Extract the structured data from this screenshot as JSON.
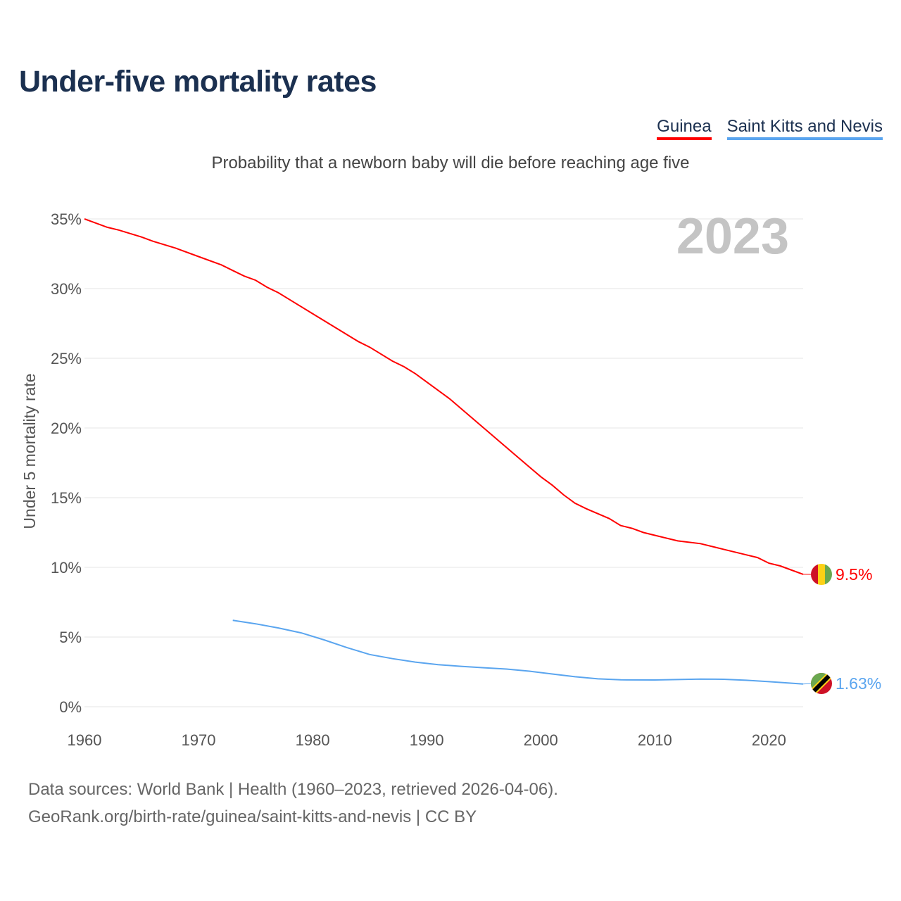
{
  "title": "Under-five mortality rates",
  "legend": [
    {
      "label": "Guinea",
      "color": "#ff0000"
    },
    {
      "label": "Saint Kitts and Nevis",
      "color": "#5aa5ef"
    }
  ],
  "subtitle": "Probability that a newborn baby will die before reaching age five",
  "year_watermark": "2023",
  "footer": {
    "line1": "Data sources: World Bank | Health (1960–2023, retrieved 2026-04-06).",
    "line2": "GeoRank.org/birth-rate/guinea/saint-kitts-and-nevis | CC BY"
  },
  "chart_data": {
    "type": "line",
    "title": "Under-five mortality rates",
    "ylabel": "Under 5 mortality rate",
    "xlabel": "",
    "xlim": [
      1960,
      2023
    ],
    "ylim": [
      0,
      35
    ],
    "xticks": [
      "1960",
      "1970",
      "1980",
      "1990",
      "2000",
      "2010",
      "2020"
    ],
    "yticks": [
      "0%",
      "5%",
      "10%",
      "15%",
      "20%",
      "25%",
      "30%",
      "35%"
    ],
    "grid": true,
    "legend_position": "top-right",
    "series": [
      {
        "name": "Guinea",
        "color": "#ff0000",
        "end_label": "9.5%",
        "x": [
          1960,
          1962,
          1963,
          1965,
          1966,
          1968,
          1970,
          1972,
          1973,
          1974,
          1975,
          1976,
          1977,
          1978,
          1980,
          1982,
          1984,
          1985,
          1987,
          1988,
          1989,
          1990,
          1992,
          1994,
          1996,
          1998,
          2000,
          2001,
          2002,
          2003,
          2004,
          2006,
          2007,
          2008,
          2009,
          2010,
          2012,
          2014,
          2016,
          2018,
          2019,
          2020,
          2021,
          2022,
          2023
        ],
        "y": [
          35.0,
          34.4,
          34.2,
          33.7,
          33.4,
          32.9,
          32.3,
          31.7,
          31.3,
          30.9,
          30.6,
          30.1,
          29.7,
          29.2,
          28.2,
          27.2,
          26.2,
          25.8,
          24.8,
          24.4,
          23.9,
          23.3,
          22.1,
          20.7,
          19.3,
          17.9,
          16.5,
          15.9,
          15.2,
          14.6,
          14.2,
          13.5,
          13.0,
          12.8,
          12.5,
          12.3,
          11.9,
          11.7,
          11.3,
          10.9,
          10.7,
          10.3,
          10.1,
          9.8,
          9.5
        ]
      },
      {
        "name": "Saint Kitts and Nevis",
        "color": "#5aa5ef",
        "end_label": "1.63%",
        "x": [
          1973,
          1975,
          1977,
          1979,
          1981,
          1983,
          1985,
          1987,
          1989,
          1991,
          1993,
          1995,
          1997,
          1999,
          2001,
          2003,
          2005,
          2007,
          2010,
          2012,
          2014,
          2016,
          2018,
          2020,
          2023
        ],
        "y": [
          6.2,
          5.95,
          5.65,
          5.3,
          4.8,
          4.25,
          3.75,
          3.45,
          3.2,
          3.02,
          2.9,
          2.8,
          2.7,
          2.55,
          2.35,
          2.15,
          2.0,
          1.93,
          1.92,
          1.95,
          1.98,
          1.97,
          1.9,
          1.8,
          1.63
        ]
      }
    ]
  }
}
